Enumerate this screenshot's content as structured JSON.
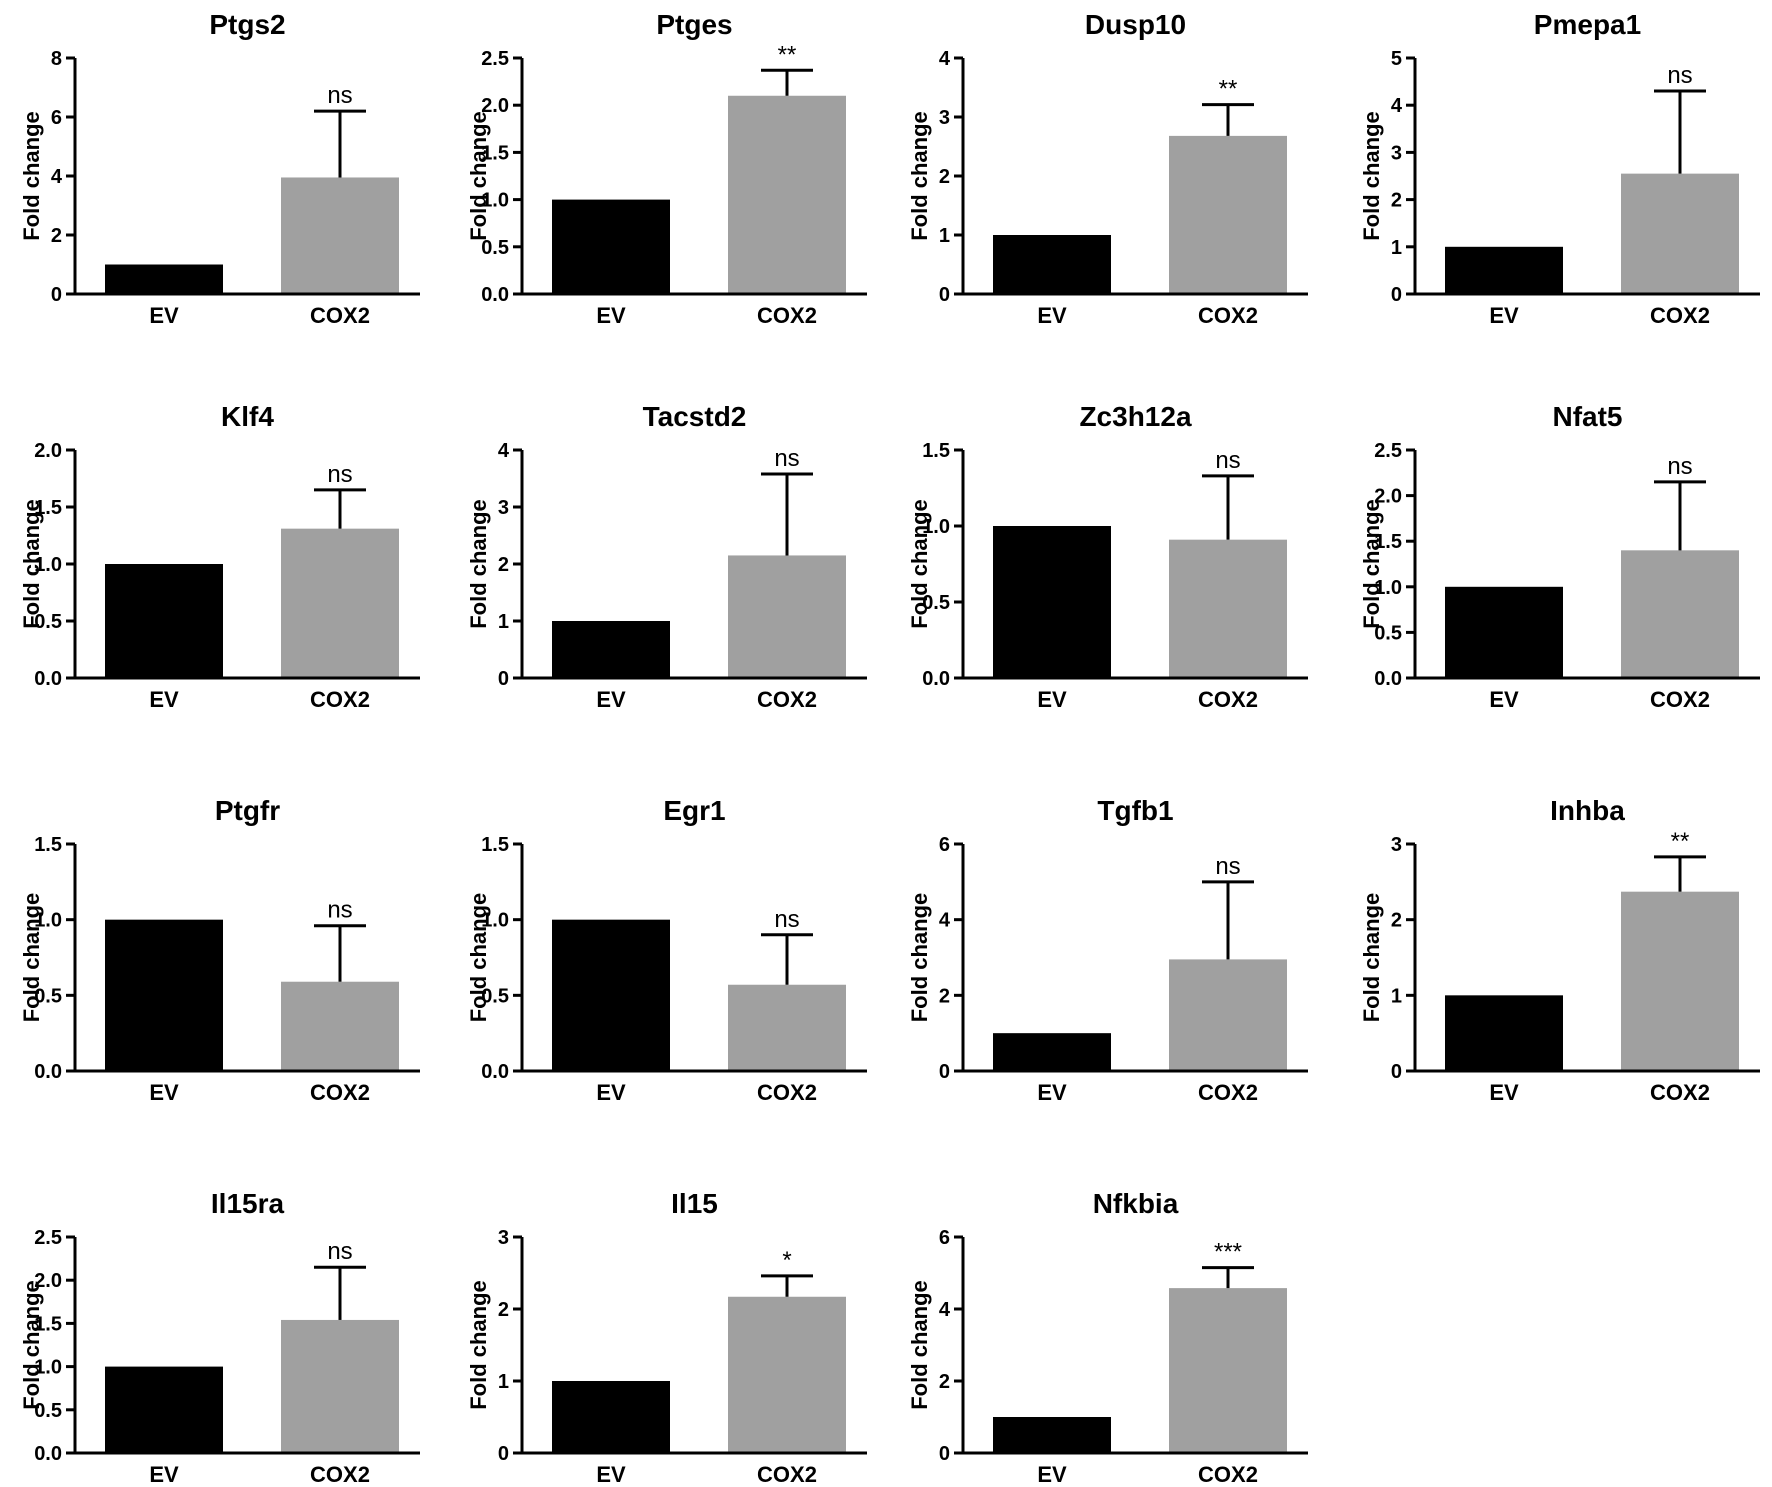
{
  "chart_data": [
    {
      "type": "bar",
      "title": "Ptgs2",
      "ylabel": "Fold change",
      "categories": [
        "EV",
        "COX2"
      ],
      "values": [
        1.0,
        3.95
      ],
      "error": [
        0,
        2.25
      ],
      "significance": "ns",
      "ylim": [
        0,
        8
      ],
      "yticks": [
        0,
        2,
        4,
        6,
        8
      ],
      "yticklabels": [
        "0",
        "2",
        "4",
        "6",
        "8"
      ],
      "colors": [
        "#000000",
        "#a0a0a0"
      ]
    },
    {
      "type": "bar",
      "title": "Ptges",
      "ylabel": "Fold change",
      "categories": [
        "EV",
        "COX2"
      ],
      "values": [
        1.0,
        2.1
      ],
      "error": [
        0,
        0.27
      ],
      "significance": "**",
      "ylim": [
        0,
        2.5
      ],
      "yticks": [
        0,
        0.5,
        1,
        1.5,
        2,
        2.5
      ],
      "yticklabels": [
        "0.0",
        "0.5",
        "1.0",
        "1.5",
        "2.0",
        "2.5"
      ],
      "colors": [
        "#000000",
        "#a0a0a0"
      ]
    },
    {
      "type": "bar",
      "title": "Dusp10",
      "ylabel": "Fold change",
      "categories": [
        "EV",
        "COX2"
      ],
      "values": [
        1.0,
        2.68
      ],
      "error": [
        0,
        0.53
      ],
      "significance": "**",
      "ylim": [
        0,
        4
      ],
      "yticks": [
        0,
        1,
        2,
        3,
        4
      ],
      "yticklabels": [
        "0",
        "1",
        "2",
        "3",
        "4"
      ],
      "colors": [
        "#000000",
        "#a0a0a0"
      ]
    },
    {
      "type": "bar",
      "title": "Pmepa1",
      "ylabel": "Fold change",
      "categories": [
        "EV",
        "COX2"
      ],
      "values": [
        1.0,
        2.55
      ],
      "error": [
        0,
        1.75
      ],
      "significance": "ns",
      "ylim": [
        0,
        5
      ],
      "yticks": [
        0,
        1,
        2,
        3,
        4,
        5
      ],
      "yticklabels": [
        "0",
        "1",
        "2",
        "3",
        "4",
        "5"
      ],
      "colors": [
        "#000000",
        "#a0a0a0"
      ]
    },
    {
      "type": "bar",
      "title": "Klf4",
      "ylabel": "Fold change",
      "categories": [
        "EV",
        "COX2"
      ],
      "values": [
        1.0,
        1.31
      ],
      "error": [
        0,
        0.34
      ],
      "significance": "ns",
      "ylim": [
        0,
        2
      ],
      "yticks": [
        0,
        0.5,
        1,
        1.5,
        2
      ],
      "yticklabels": [
        "0.0",
        "0.5",
        "1.0",
        "1.5",
        "2.0"
      ],
      "colors": [
        "#000000",
        "#a0a0a0"
      ]
    },
    {
      "type": "bar",
      "title": "Tacstd2",
      "ylabel": "Fold change",
      "categories": [
        "EV",
        "COX2"
      ],
      "values": [
        1.0,
        2.15
      ],
      "error": [
        0,
        1.43
      ],
      "significance": "ns",
      "ylim": [
        0,
        4
      ],
      "yticks": [
        0,
        1,
        2,
        3,
        4
      ],
      "yticklabels": [
        "0",
        "1",
        "2",
        "3",
        "4"
      ],
      "colors": [
        "#000000",
        "#a0a0a0"
      ]
    },
    {
      "type": "bar",
      "title": "Zc3h12a",
      "ylabel": "Fold change",
      "categories": [
        "EV",
        "COX2"
      ],
      "values": [
        1.0,
        0.91
      ],
      "error": [
        0,
        0.42
      ],
      "significance": "ns",
      "ylim": [
        0,
        1.5
      ],
      "yticks": [
        0,
        0.5,
        1,
        1.5
      ],
      "yticklabels": [
        "0.0",
        "0.5",
        "1.0",
        "1.5"
      ],
      "colors": [
        "#000000",
        "#a0a0a0"
      ]
    },
    {
      "type": "bar",
      "title": "Nfat5",
      "ylabel": "Fold change",
      "categories": [
        "EV",
        "COX2"
      ],
      "values": [
        1.0,
        1.4
      ],
      "error": [
        0,
        0.75
      ],
      "significance": "ns",
      "ylim": [
        0,
        2.5
      ],
      "yticks": [
        0,
        0.5,
        1,
        1.5,
        2,
        2.5
      ],
      "yticklabels": [
        "0.0",
        "0.5",
        "1.0",
        "1.5",
        "2.0",
        "2.5"
      ],
      "colors": [
        "#000000",
        "#a0a0a0"
      ]
    },
    {
      "type": "bar",
      "title": "Ptgfr",
      "ylabel": "Fold change",
      "categories": [
        "EV",
        "COX2"
      ],
      "values": [
        1.0,
        0.59
      ],
      "error": [
        0,
        0.37
      ],
      "significance": "ns",
      "ylim": [
        0,
        1.5
      ],
      "yticks": [
        0,
        0.5,
        1,
        1.5
      ],
      "yticklabels": [
        "0.0",
        "0.5",
        "1.0",
        "1.5"
      ],
      "colors": [
        "#000000",
        "#a0a0a0"
      ]
    },
    {
      "type": "bar",
      "title": "Egr1",
      "ylabel": "Fold change",
      "categories": [
        "EV",
        "COX2"
      ],
      "values": [
        1.0,
        0.57
      ],
      "error": [
        0,
        0.33
      ],
      "significance": "ns",
      "ylim": [
        0,
        1.5
      ],
      "yticks": [
        0,
        0.5,
        1,
        1.5
      ],
      "yticklabels": [
        "0.0",
        "0.5",
        "1.0",
        "1.5"
      ],
      "colors": [
        "#000000",
        "#a0a0a0"
      ]
    },
    {
      "type": "bar",
      "title": "Tgfb1",
      "ylabel": "Fold change",
      "categories": [
        "EV",
        "COX2"
      ],
      "values": [
        1.0,
        2.95
      ],
      "error": [
        0,
        2.05
      ],
      "significance": "ns",
      "ylim": [
        0,
        6
      ],
      "yticks": [
        0,
        2,
        4,
        6
      ],
      "yticklabels": [
        "0",
        "2",
        "4",
        "6"
      ],
      "colors": [
        "#000000",
        "#a0a0a0"
      ]
    },
    {
      "type": "bar",
      "title": "Inhba",
      "ylabel": "Fold change",
      "categories": [
        "EV",
        "COX2"
      ],
      "values": [
        1.0,
        2.37
      ],
      "error": [
        0,
        0.46
      ],
      "significance": "**",
      "ylim": [
        0,
        3
      ],
      "yticks": [
        0,
        1,
        2,
        3
      ],
      "yticklabels": [
        "0",
        "1",
        "2",
        "3"
      ],
      "colors": [
        "#000000",
        "#a0a0a0"
      ]
    },
    {
      "type": "bar",
      "title": "Il15ra",
      "ylabel": "Fold change",
      "categories": [
        "EV",
        "COX2"
      ],
      "values": [
        1.0,
        1.54
      ],
      "error": [
        0,
        0.61
      ],
      "significance": "ns",
      "ylim": [
        0,
        2.5
      ],
      "yticks": [
        0,
        0.5,
        1,
        1.5,
        2,
        2.5
      ],
      "yticklabels": [
        "0.0",
        "0.5",
        "1.0",
        "1.5",
        "2.0",
        "2.5"
      ],
      "colors": [
        "#000000",
        "#a0a0a0"
      ]
    },
    {
      "type": "bar",
      "title": "Il15",
      "ylabel": "Fold change",
      "categories": [
        "EV",
        "COX2"
      ],
      "values": [
        1.0,
        2.17
      ],
      "error": [
        0,
        0.29
      ],
      "significance": "*",
      "ylim": [
        0,
        3
      ],
      "yticks": [
        0,
        1,
        2,
        3
      ],
      "yticklabels": [
        "0",
        "1",
        "2",
        "3"
      ],
      "colors": [
        "#000000",
        "#a0a0a0"
      ]
    },
    {
      "type": "bar",
      "title": "Nfkbia",
      "ylabel": "Fold change",
      "categories": [
        "EV",
        "COX2"
      ],
      "values": [
        1.0,
        4.58
      ],
      "error": [
        0,
        0.57
      ],
      "significance": "***",
      "ylim": [
        0,
        6
      ],
      "yticks": [
        0,
        2,
        4,
        6
      ],
      "yticklabels": [
        "0",
        "2",
        "4",
        "6"
      ],
      "colors": [
        "#000000",
        "#a0a0a0"
      ]
    }
  ]
}
